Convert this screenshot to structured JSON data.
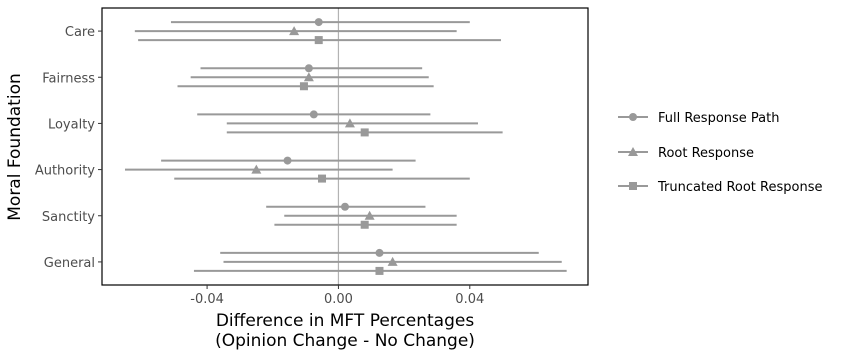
{
  "chart_data": {
    "type": "forest",
    "xlabel_line1": "Difference in MFT Percentages",
    "xlabel_line2": "(Opinion Change - No Change)",
    "ylabel": "Moral Foundation",
    "xlim": [
      -0.072,
      0.076
    ],
    "x_ticks": [
      -0.04,
      0.0,
      0.04
    ],
    "x_tick_labels": [
      "-0.04",
      "0.00",
      "0.04"
    ],
    "zero_line": 0,
    "categories": [
      "Care",
      "Fairness",
      "Loyalty",
      "Authority",
      "Sanctity",
      "General"
    ],
    "colors": {
      "series": "#999999",
      "panel_border": "#000000",
      "zero_line": "#b3b3b3"
    },
    "series": [
      {
        "name": "Full Response Path",
        "marker": "circle",
        "estimates": [
          -0.006,
          -0.009,
          -0.0075,
          -0.0155,
          0.002,
          0.0125
        ],
        "lower": [
          -0.051,
          -0.042,
          -0.043,
          -0.054,
          -0.022,
          -0.036
        ],
        "upper": [
          0.04,
          0.0255,
          0.028,
          0.0235,
          0.0265,
          0.061
        ]
      },
      {
        "name": "Root Response",
        "marker": "triangle",
        "estimates": [
          -0.0135,
          -0.009,
          0.0035,
          -0.025,
          0.0095,
          0.0165
        ],
        "lower": [
          -0.062,
          -0.045,
          -0.034,
          -0.065,
          -0.0165,
          -0.035
        ],
        "upper": [
          0.036,
          0.0275,
          0.0425,
          0.0165,
          0.036,
          0.068
        ]
      },
      {
        "name": "Truncated Root Response",
        "marker": "square",
        "estimates": [
          -0.006,
          -0.0105,
          0.008,
          -0.005,
          0.008,
          0.0125
        ],
        "lower": [
          -0.061,
          -0.049,
          -0.034,
          -0.05,
          -0.0195,
          -0.044
        ],
        "upper": [
          0.0495,
          0.029,
          0.05,
          0.04,
          0.036,
          0.0695
        ]
      }
    ]
  }
}
